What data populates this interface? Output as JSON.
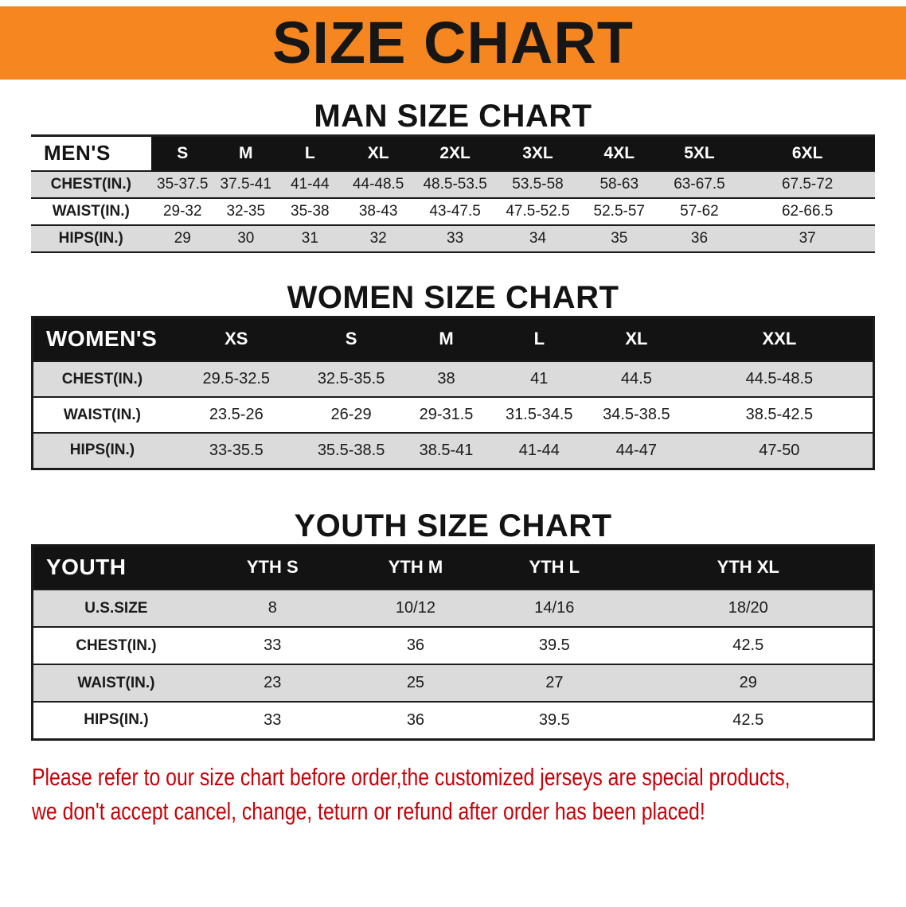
{
  "banner": {
    "title": "SIZE CHART"
  },
  "chart_data": [
    {
      "type": "table",
      "title": "MAN SIZE CHART",
      "columns": [
        "MEN'S",
        "S",
        "M",
        "L",
        "XL",
        "2XL",
        "3XL",
        "4XL",
        "5XL",
        "6XL"
      ],
      "rows": [
        [
          "CHEST(IN.)",
          "35-37.5",
          "37.5-41",
          "41-44",
          "44-48.5",
          "48.5-53.5",
          "53.5-58",
          "58-63",
          "63-67.5",
          "67.5-72"
        ],
        [
          "WAIST(IN.)",
          "29-32",
          "32-35",
          "35-38",
          "38-43",
          "43-47.5",
          "47.5-52.5",
          "52.5-57",
          "57-62",
          "62-66.5"
        ],
        [
          "HIPS(IN.)",
          "29",
          "30",
          "31",
          "32",
          "33",
          "34",
          "35",
          "36",
          "37"
        ]
      ]
    },
    {
      "type": "table",
      "title": "WOMEN SIZE CHART",
      "columns": [
        "WOMEN'S",
        "XS",
        "S",
        "M",
        "L",
        "XL",
        "XXL"
      ],
      "rows": [
        [
          "CHEST(IN.)",
          "29.5-32.5",
          "32.5-35.5",
          "38",
          "41",
          "44.5",
          "44.5-48.5"
        ],
        [
          "WAIST(IN.)",
          "23.5-26",
          "26-29",
          "29-31.5",
          "31.5-34.5",
          "34.5-38.5",
          "38.5-42.5"
        ],
        [
          "HIPS(IN.)",
          "33-35.5",
          "35.5-38.5",
          "38.5-41",
          "41-44",
          "44-47",
          "47-50"
        ]
      ]
    },
    {
      "type": "table",
      "title": "YOUTH SIZE CHART",
      "columns": [
        "YOUTH",
        "YTH S",
        "YTH M",
        "YTH L",
        "YTH XL"
      ],
      "rows": [
        [
          "U.S.SIZE",
          "8",
          "10/12",
          "14/16",
          "18/20"
        ],
        [
          "CHEST(IN.)",
          "33",
          "36",
          "39.5",
          "42.5"
        ],
        [
          "WAIST(IN.)",
          "23",
          "25",
          "27",
          "29"
        ],
        [
          "HIPS(IN.)",
          "33",
          "36",
          "39.5",
          "42.5"
        ]
      ]
    }
  ],
  "footer": {
    "line1": "Please refer to our size chart before order,the customized jerseys are special products,",
    "line2": "we don't accept cancel, change, teturn or refund after order has been placed!"
  },
  "colors": {
    "banner_orange": "#F6861F",
    "table_header_black": "#131313",
    "row_stripe_gray": "#DBDBDB",
    "notice_red": "#C80008"
  }
}
